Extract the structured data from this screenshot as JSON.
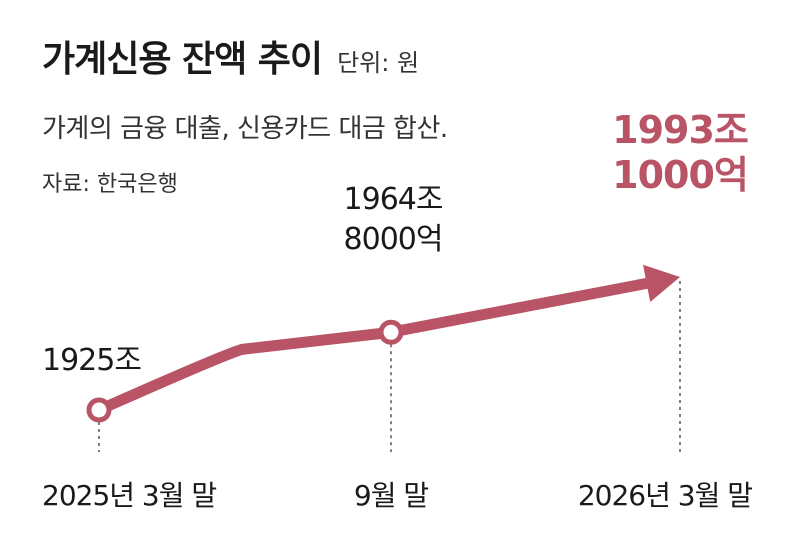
{
  "header": {
    "title": "가계신용 잔액 추이",
    "unit": "단위: 원",
    "subtitle": "가계의 금융 대출, 신용카드 대금 합산.",
    "source": "자료: 한국은행"
  },
  "colors": {
    "accent": "#b85465",
    "text": "#1a1a1a",
    "dotted_line": "#555555"
  },
  "chart_data": {
    "type": "line",
    "categories": [
      "2025년 3월 말",
      "9월 말",
      "2026년 3월 말"
    ],
    "values": [
      1925,
      1964.8,
      1993.1
    ],
    "value_unit": "조 원",
    "data_labels": [
      [
        "1925조"
      ],
      [
        "1964조",
        "8000억"
      ],
      [
        "1993조",
        "1000억"
      ]
    ],
    "markers": [
      "circle",
      "circle",
      "arrow"
    ],
    "highlight_last": true,
    "grid": false
  }
}
